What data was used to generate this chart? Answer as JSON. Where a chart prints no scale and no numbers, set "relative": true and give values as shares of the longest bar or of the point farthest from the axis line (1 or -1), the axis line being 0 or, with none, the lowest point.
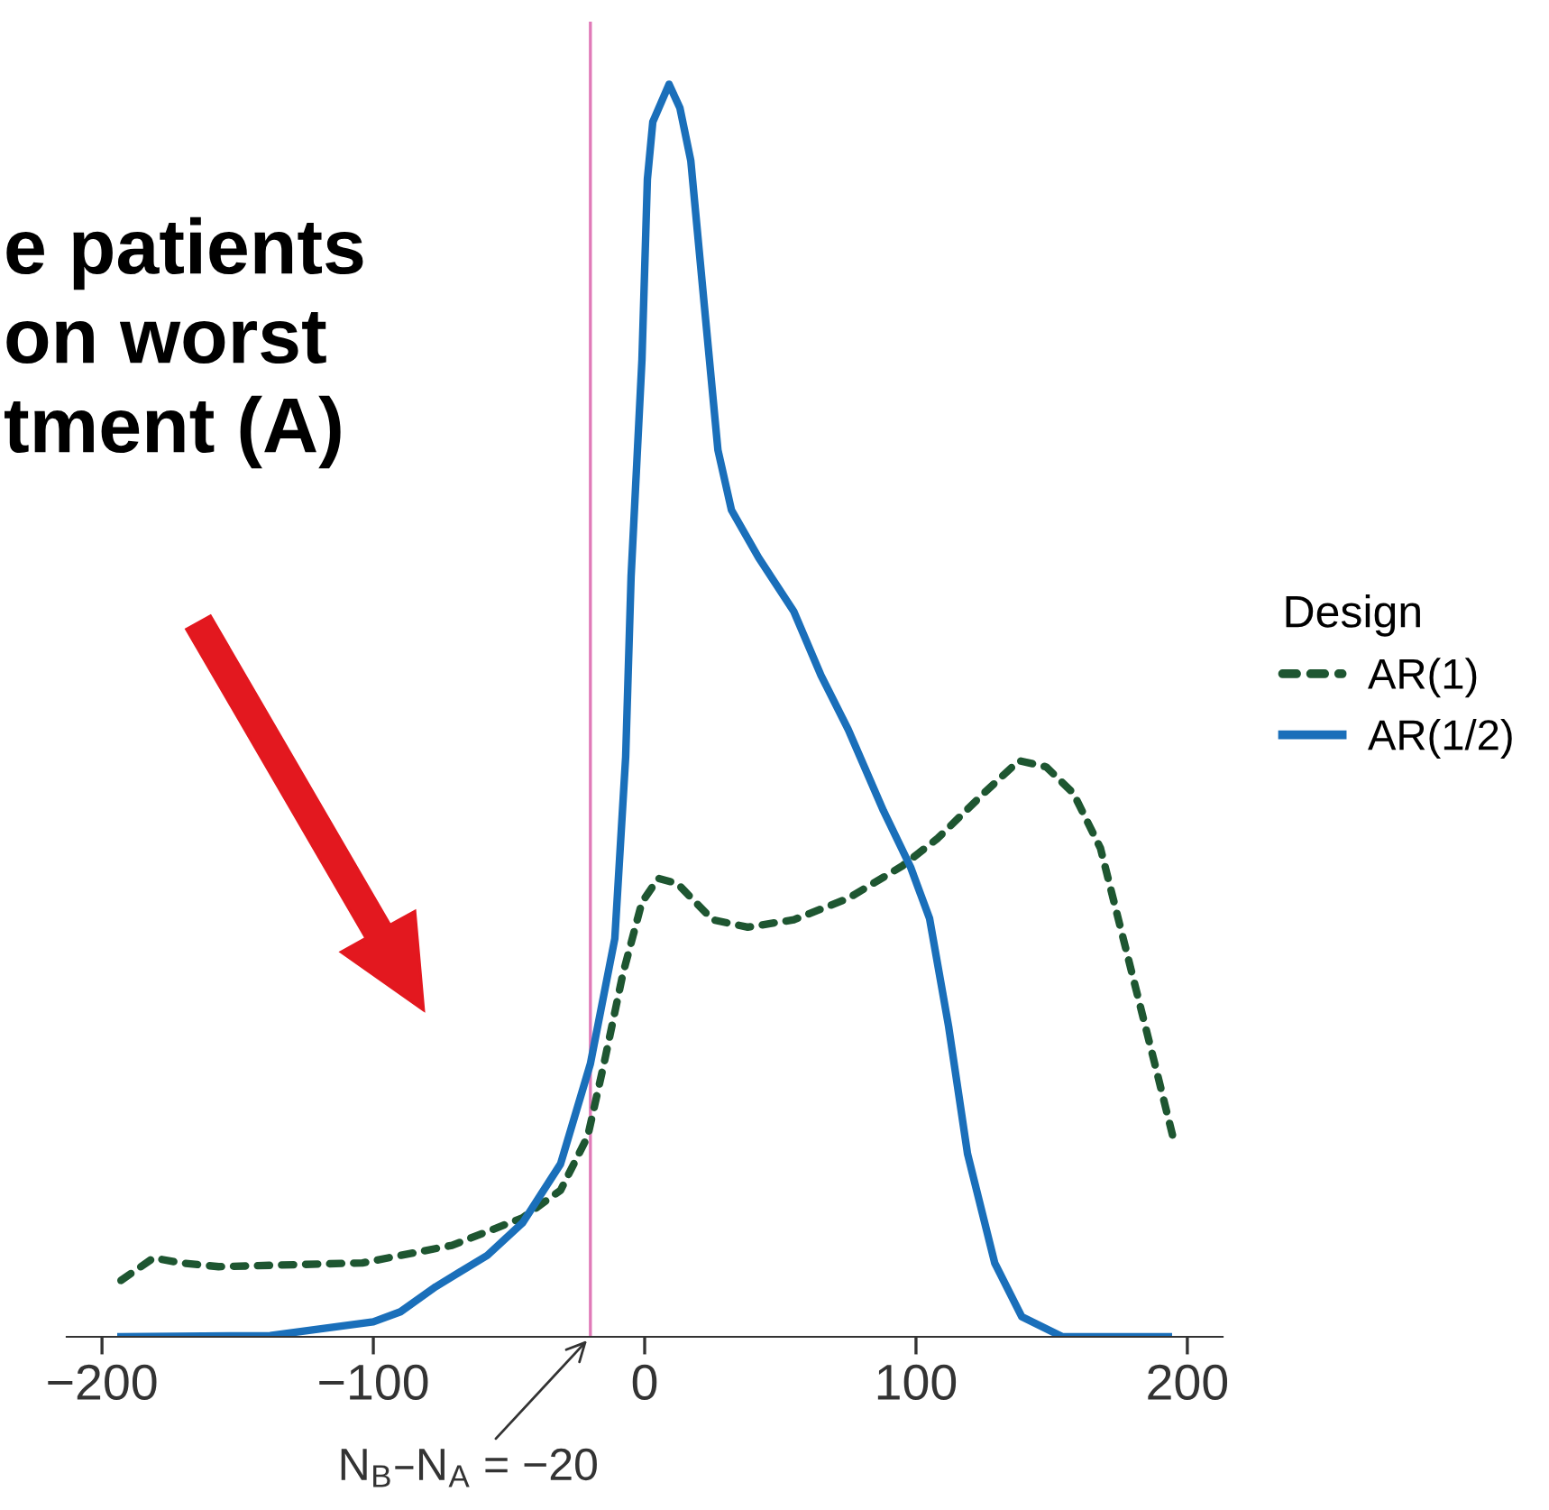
{
  "chart_data": {
    "type": "line",
    "relative": true,
    "xlim": [
      -213,
      213
    ],
    "xticks": [
      {
        "value": -200,
        "label": "−200"
      },
      {
        "value": -100,
        "label": "−100"
      },
      0,
      100,
      200
    ],
    "legend_title": "Design",
    "legend": "right",
    "grid": false,
    "series": [
      {
        "name": "AR(1)",
        "color": "#1e5631",
        "line_style": "dashed",
        "x": [
          -193,
          -181,
          -171,
          -157,
          -104,
          -71,
          -45,
          -31,
          -21,
          -15,
          -8,
          -1,
          5,
          12,
          25,
          38,
          55,
          75,
          95,
          108,
          125,
          138,
          148,
          158,
          168,
          178,
          188,
          195
        ],
        "values": [
          0.045,
          0.063,
          0.059,
          0.056,
          0.059,
          0.073,
          0.095,
          0.117,
          0.16,
          0.218,
          0.29,
          0.347,
          0.366,
          0.362,
          0.333,
          0.327,
          0.333,
          0.35,
          0.376,
          0.398,
          0.434,
          0.46,
          0.455,
          0.434,
          0.39,
          0.304,
          0.218,
          0.157
        ]
      },
      {
        "name": "AR(1/2)",
        "color": "#1a6fba",
        "line_style": "solid",
        "x": [
          -193,
          -138,
          -100,
          -90,
          -77,
          -58,
          -45,
          -31,
          -20,
          -11,
          -7,
          -5,
          -1,
          1,
          3,
          9,
          13,
          17,
          22,
          27,
          32,
          42,
          55,
          65,
          75,
          88,
          98,
          105,
          112,
          119,
          129,
          139,
          154,
          193
        ],
        "values": [
          0,
          0.001,
          0.012,
          0.02,
          0.04,
          0.065,
          0.091,
          0.138,
          0.218,
          0.318,
          0.463,
          0.607,
          0.78,
          0.924,
          0.97,
          1,
          0.981,
          0.939,
          0.823,
          0.708,
          0.66,
          0.622,
          0.579,
          0.528,
          0.485,
          0.42,
          0.375,
          0.334,
          0.248,
          0.146,
          0.059,
          0.016,
          0,
          0
        ]
      }
    ],
    "ref_lines": [
      {
        "axis": "x",
        "value": -20,
        "label": "N$_{B}$–N$_{A}$ = −20",
        "color": "#e07ab8"
      }
    ],
    "annotations": [
      "e patients\non worst\ntment (A)"
    ]
  }
}
